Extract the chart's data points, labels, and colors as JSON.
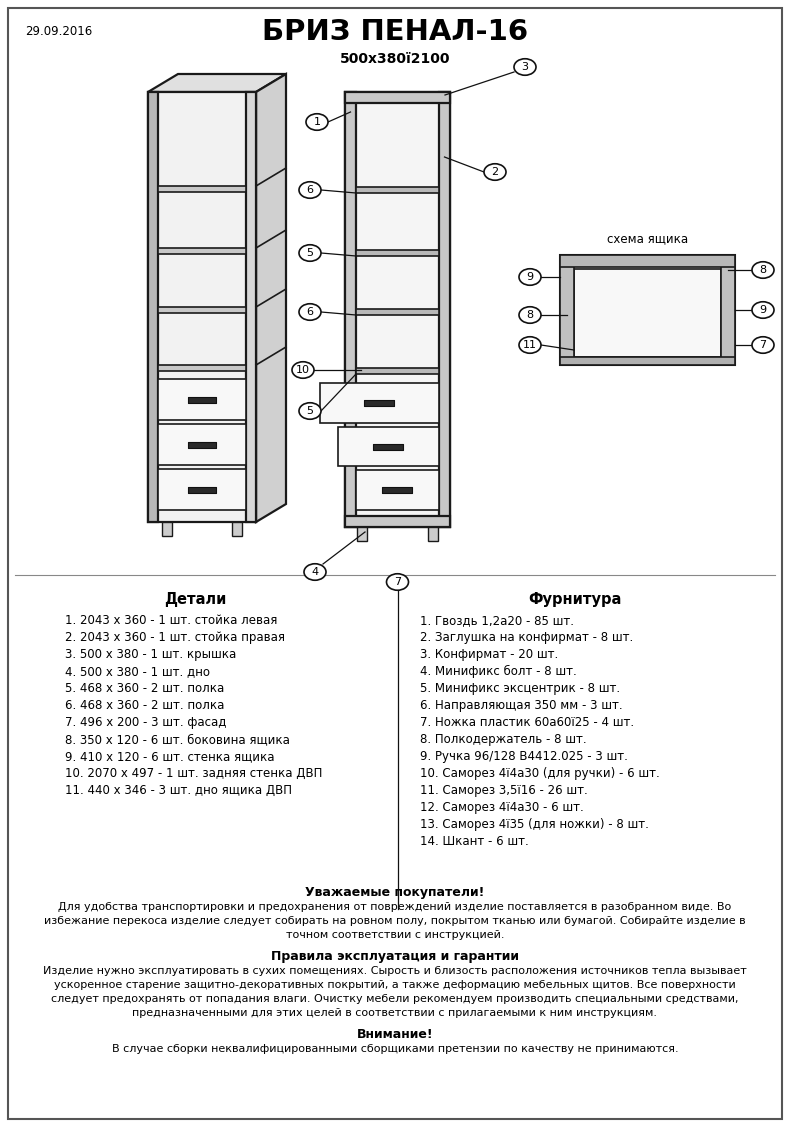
{
  "date": "29.09.2016",
  "title": "БРИЗ ПЕНАЛ-16",
  "dimensions": "500х380ї2100",
  "bg_color": "#ffffff",
  "border_color": "#333333",
  "details_header": "Детали",
  "details": [
    "1. 2043 х 360 - 1 шт. стойка левая",
    "2. 2043 х 360 - 1 шт. стойка правая",
    "3. 500 х 380 - 1 шт. крышка",
    "4. 500 х 380 - 1 шт. дно",
    "5. 468 х 360 - 2 шт. полка",
    "6. 468 х 360 - 2 шт. полка",
    "7. 496 х 200 - 3 шт. фасад",
    "8. 350 х 120 - 6 шт. боковина ящика",
    "9. 410 х 120 - 6 шт. стенка ящика",
    "10. 2070 х 497 - 1 шт. задняя стенка ДВП",
    "11. 440 х 346 - 3 шт. дно ящика ДВП"
  ],
  "furniture_header": "Фурнитура",
  "furniture": [
    "1. Гвоздь 1,2а20 - 85 шт.",
    "2. Заглушка на конфирмат - 8 шт.",
    "3. Конфирмат - 20 шт.",
    "4. Минификс болт - 8 шт.",
    "5. Минификс эксцентрик - 8 шт.",
    "6. Направляющая 350 мм - 3 шт.",
    "7. Ножка пластик 60а60ї25 - 4 шт.",
    "8. Полкодержатель - 8 шт.",
    "9. Ручка 96/128 В4412.025 - 3 шт.",
    "10. Саморез 4ї4а30 (для ручки) - 6 шт.",
    "11. Саморез 3,5ї16 - 26 шт.",
    "12. Саморез 4ї4а30 - 6 шт.",
    "13. Саморез 4ї35 (для ножки) - 8 шт.",
    "14. Шкант - 6 шт."
  ],
  "notice_header": "Уважаемые покупатели!",
  "notice_lines": [
    "Для удобства транспортировки и предохранения от повреждений изделие поставляется в разобранном виде. Во",
    "избежание перекоса изделие следует собирать на ровном полу, покрытом тканью или бумагой. Собирайте изделие в",
    "точном соответствии с инструкцией."
  ],
  "rules_header": "Правила эксплуатация и гарантии",
  "rules_lines": [
    "Изделие нужно эксплуатировать в сухих помещениях. Сырость и близость расположения источников тепла вызывает",
    "ускоренное старение защитно-декоративных покрытий, а также деформацию мебельных щитов. Все поверхности",
    "следует предохранять от попадания влаги. Очистку мебели рекомендуем производить специальными средствами,",
    "предназначенными для этих целей в соответствии с прилагаемыми к ним инструкциям."
  ],
  "warning_header": "Внимание!",
  "warning_text": "В случае сборки неквалифицированными сборщиками претензии по качеству не принимаются.",
  "diagram_label": "схема ящика"
}
